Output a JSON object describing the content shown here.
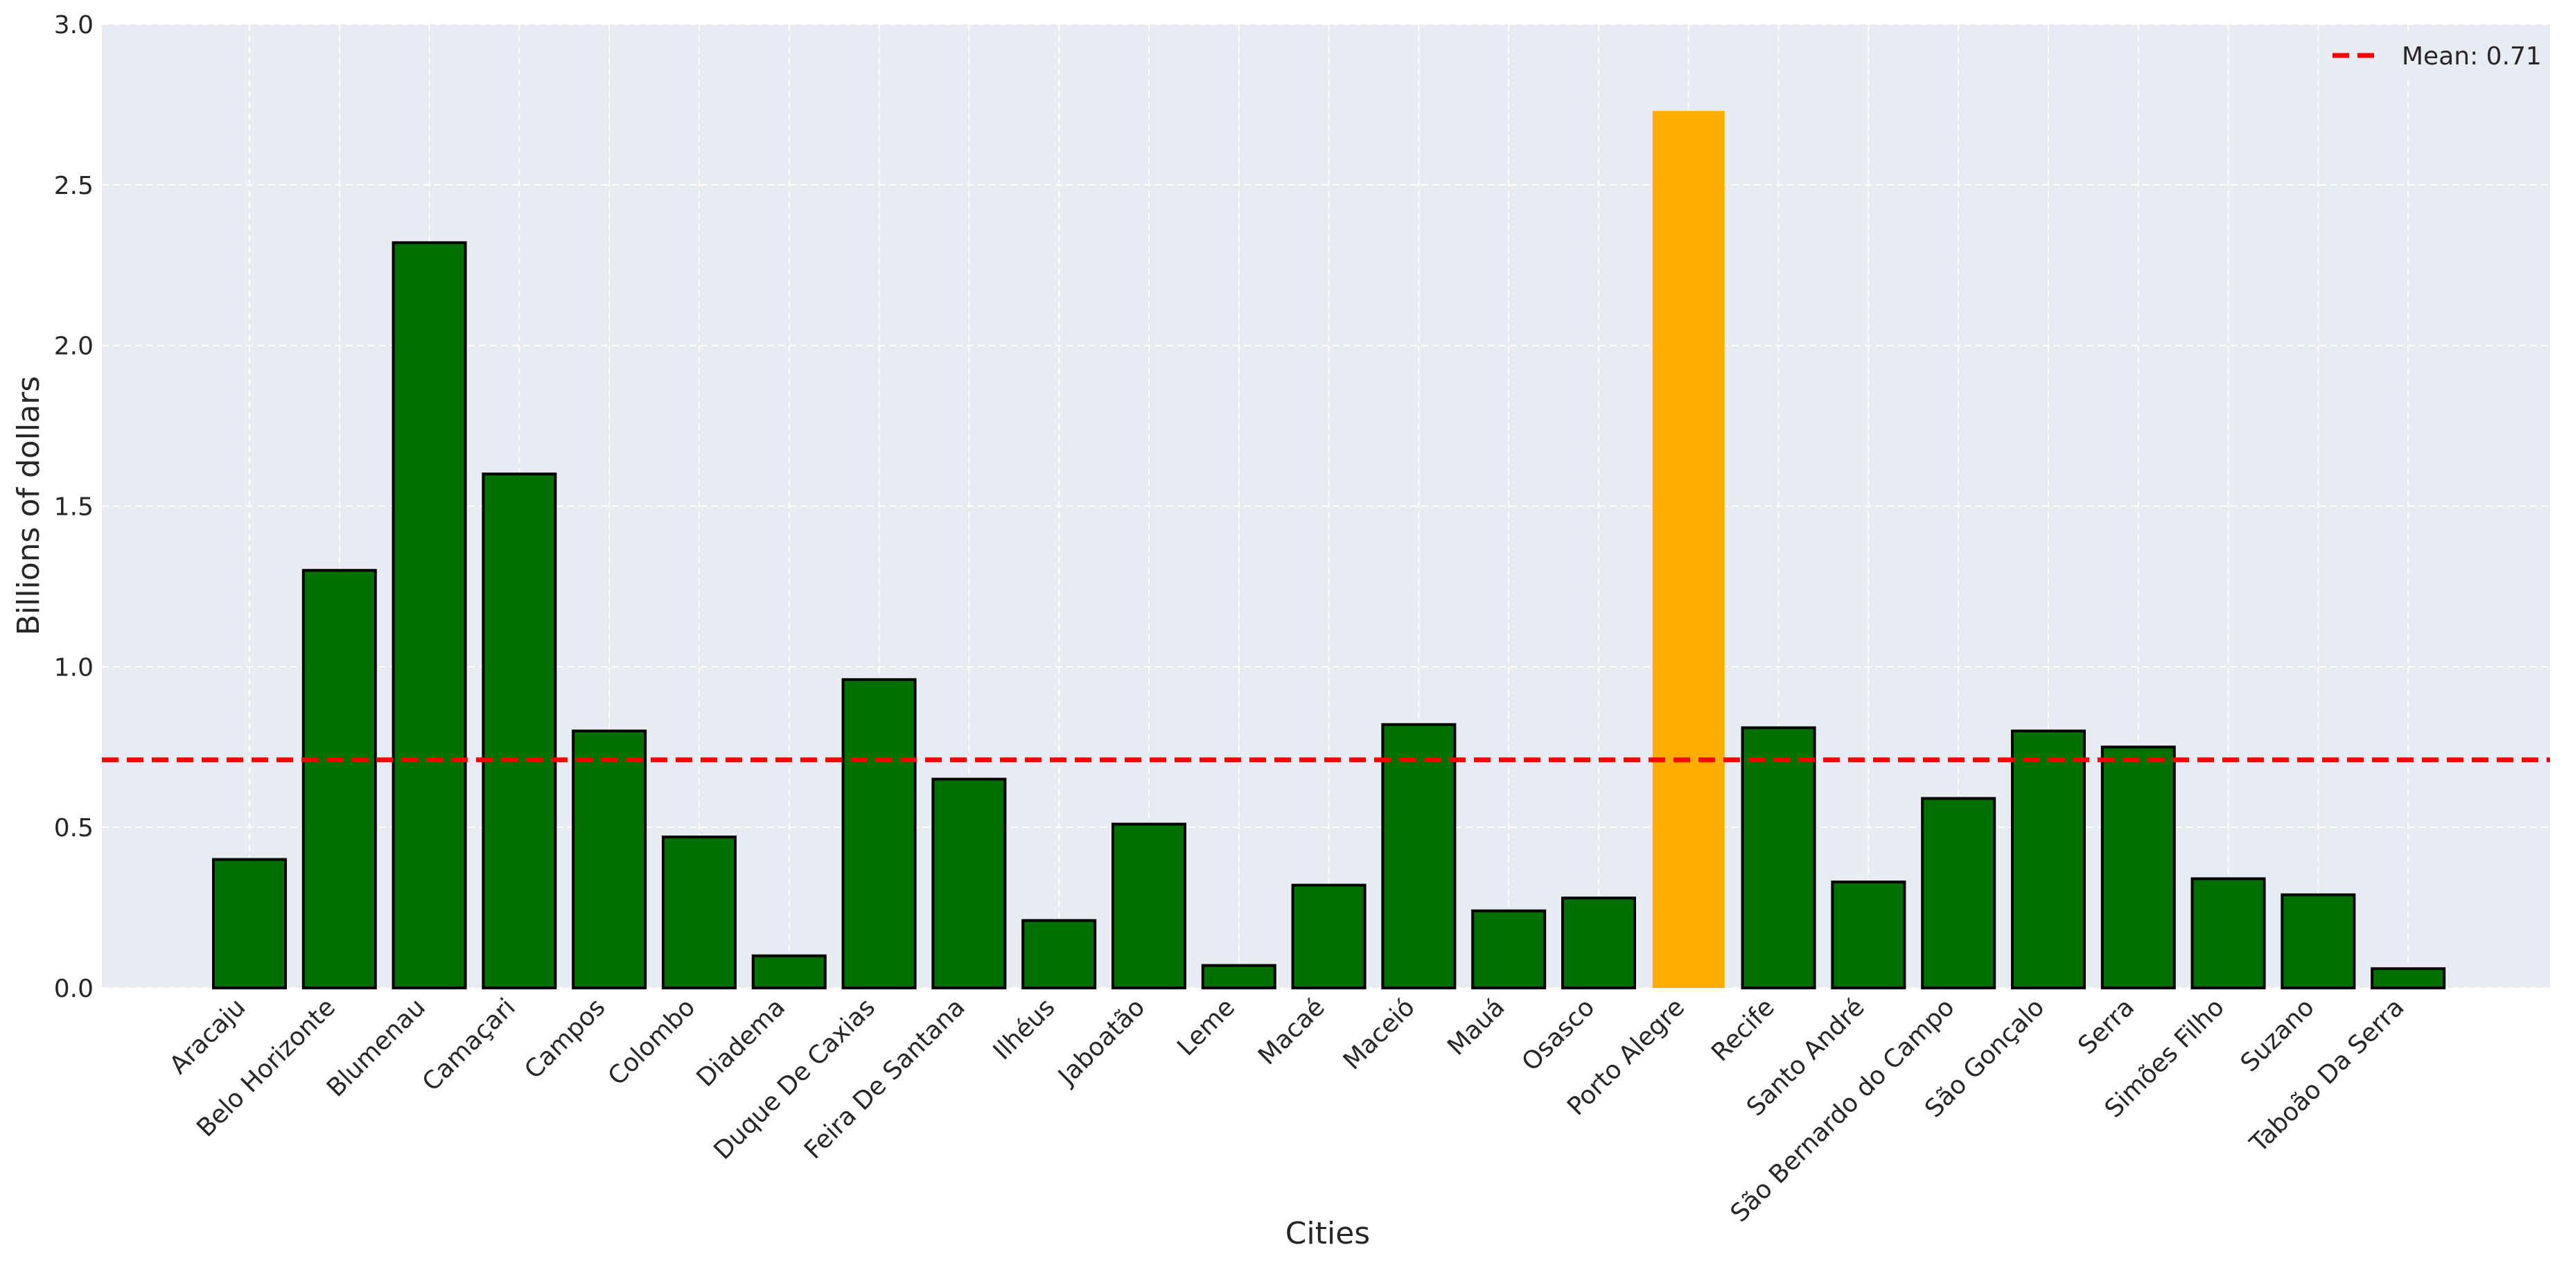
{
  "chart_data": {
    "type": "bar",
    "title": "",
    "xlabel": "Cities",
    "ylabel": "Billions of dollars",
    "ylim": [
      0,
      3.0
    ],
    "yticks": [
      "0.0",
      "0.5",
      "1.0",
      "1.5",
      "2.0",
      "2.5",
      "3.0"
    ],
    "grid": true,
    "legend": {
      "placement": "top-right",
      "entries": [
        "Mean: 0.71"
      ]
    },
    "mean_line": {
      "value": 0.71,
      "label": "Mean: 0.71",
      "color": "#ff0000",
      "style": "dashed"
    },
    "colors": {
      "default": "#007000",
      "highlight": "#ffad00",
      "edge": "#000000",
      "plot_background": "#e9ebf2",
      "grid": "#ffffff"
    },
    "highlight_category": "Porto Alegre",
    "categories": [
      "Aracaju",
      "Belo Horizonte",
      "Blumenau",
      "Camaçari",
      "Campos",
      "Colombo",
      "Diadema",
      "Duque De Caxias",
      "Feira De Santana",
      "Ilhéus",
      "Jaboatão",
      "Leme",
      "Macaé",
      "Maceió",
      "Mauá",
      "Osasco",
      "Porto Alegre",
      "Recife",
      "Santo André",
      "São Bernardo do Campo",
      "São Gonçalo",
      "Serra",
      "Simões Filho",
      "Suzano",
      "Taboão Da Serra"
    ],
    "values": [
      0.4,
      1.3,
      2.32,
      1.6,
      0.8,
      0.47,
      0.1,
      0.96,
      0.65,
      0.21,
      0.51,
      0.07,
      0.32,
      0.82,
      0.24,
      0.28,
      2.73,
      0.81,
      0.33,
      0.59,
      0.8,
      0.75,
      0.34,
      0.29,
      0.06
    ]
  }
}
